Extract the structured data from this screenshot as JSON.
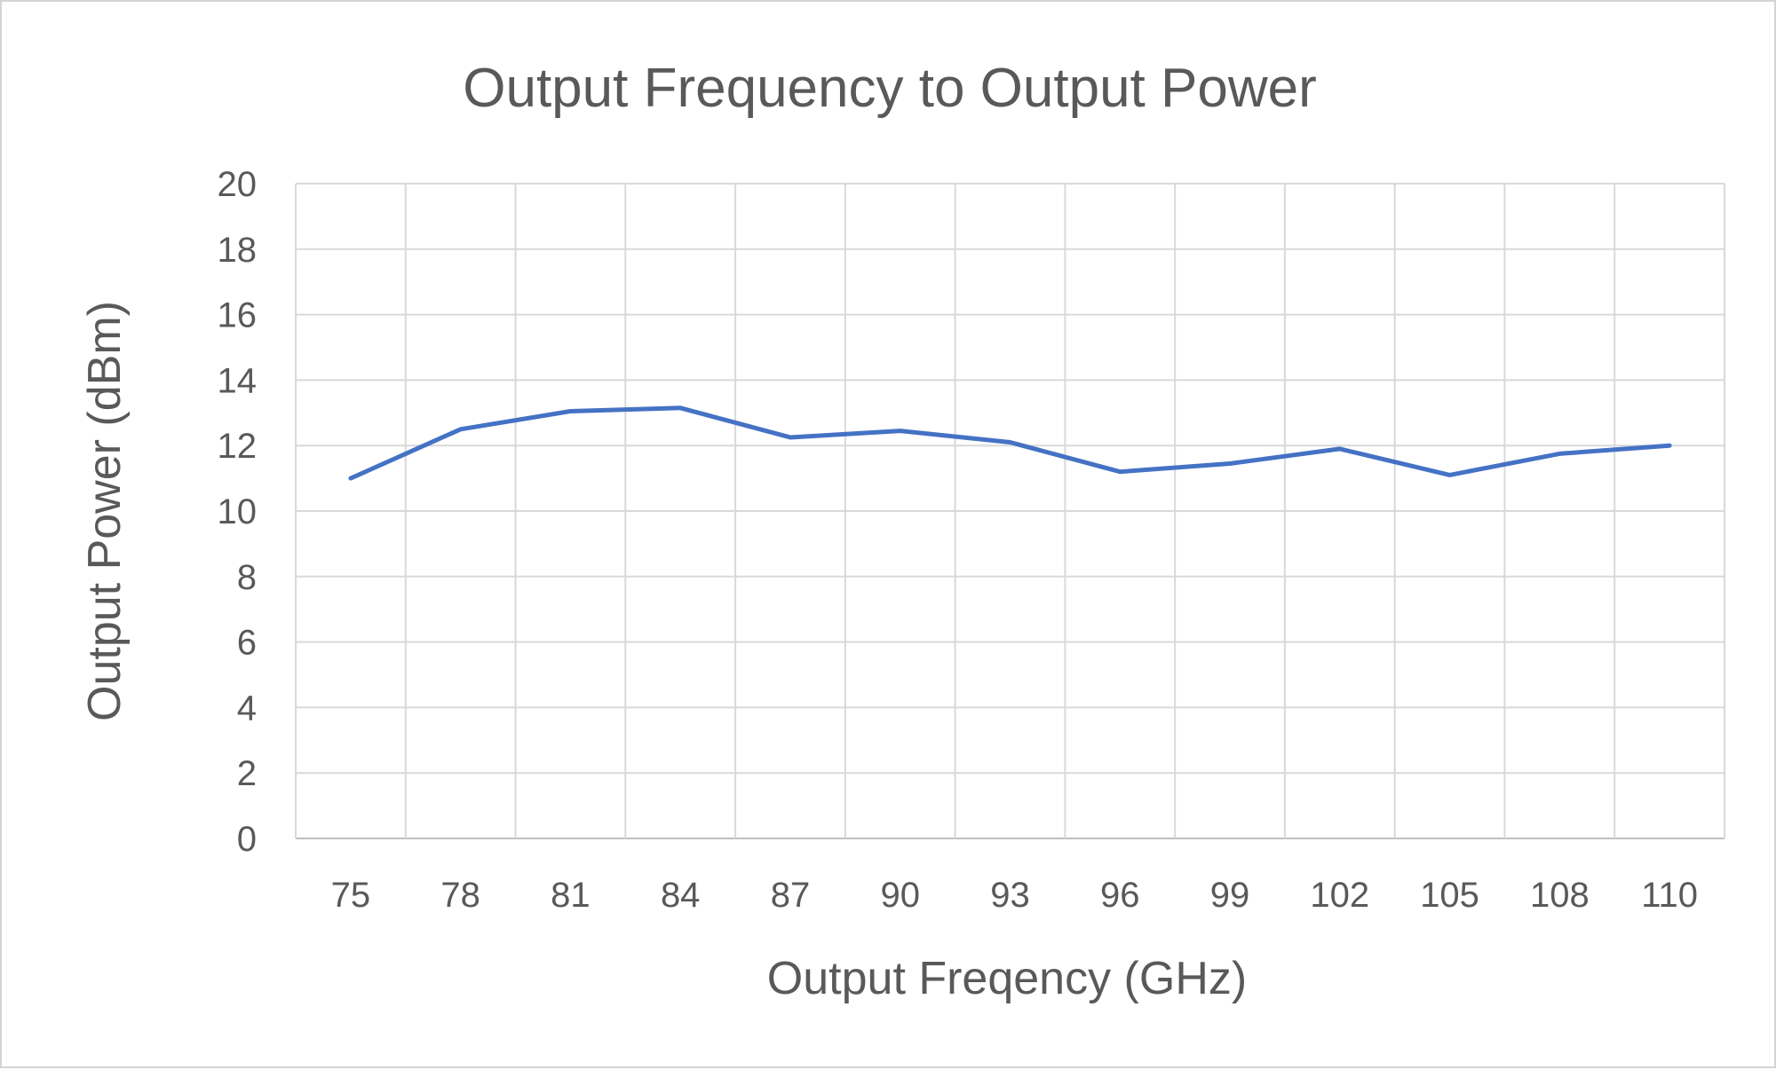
{
  "chart_data": {
    "type": "line",
    "title": "Output Frequency to Output Power",
    "xlabel": "Output Freqency (GHz)",
    "ylabel": "Output Power (dBm)",
    "categories": [
      "75",
      "78",
      "81",
      "84",
      "87",
      "90",
      "93",
      "96",
      "99",
      "102",
      "105",
      "108",
      "110"
    ],
    "ylim": [
      0,
      20
    ],
    "yticks": [
      "0",
      "2",
      "4",
      "6",
      "8",
      "10",
      "12",
      "14",
      "16",
      "18",
      "20"
    ],
    "grid": true,
    "legend": "none",
    "series": [
      {
        "color": "#4472c4",
        "values": [
          11.0,
          12.5,
          13.05,
          13.15,
          12.25,
          12.45,
          12.1,
          11.2,
          11.45,
          11.9,
          11.1,
          11.75,
          12.0
        ]
      }
    ]
  }
}
